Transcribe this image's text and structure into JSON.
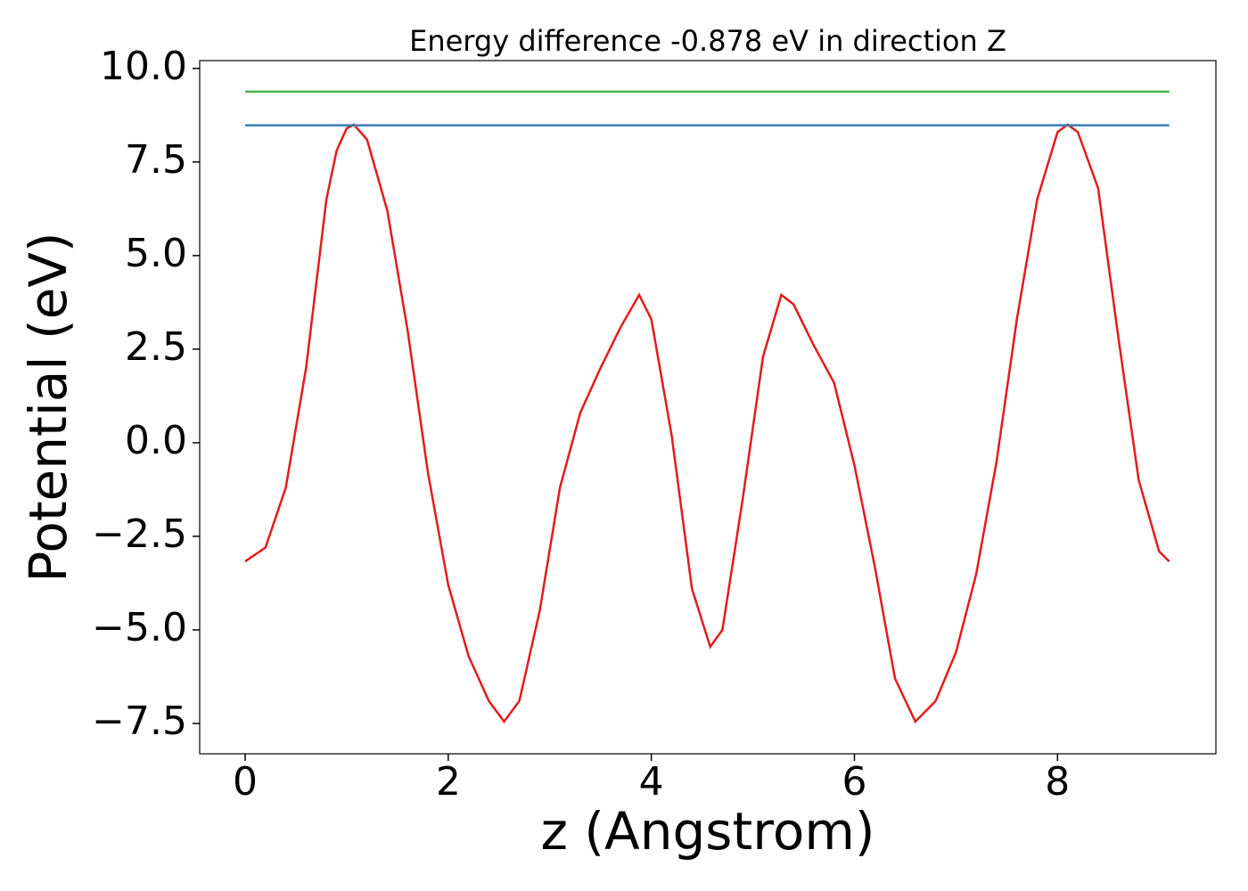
{
  "chart_data": {
    "type": "line",
    "title": "Energy difference -0.878 eV in direction Z",
    "xlabel": "z (Angstrom)",
    "ylabel": "Potential (eV)",
    "xlim": [
      -0.448,
      9.56
    ],
    "ylim": [
      -8.31,
      10.21
    ],
    "xticks": [
      0,
      2,
      4,
      6,
      8
    ],
    "yticks": [
      {
        "value": 10,
        "label": "10.0"
      },
      7.5,
      {
        "value": 5,
        "label": "5.0"
      },
      2.5,
      {
        "value": 0,
        "label": "0.0"
      },
      {
        "value": -2.5,
        "label": "−2.5"
      },
      {
        "value": -5,
        "label": "−5.0"
      },
      {
        "value": -7.5,
        "label": "−7.5"
      }
    ],
    "grid": false,
    "series": [
      {
        "color": "#e41a1c",
        "x": [
          0,
          0.2,
          0.4,
          0.6,
          0.8,
          0.9,
          1.0,
          1.07,
          1.2,
          1.4,
          1.6,
          1.8,
          2.0,
          2.2,
          2.4,
          2.55,
          2.7,
          2.9,
          3.1,
          3.3,
          3.5,
          3.7,
          3.88,
          4.0,
          4.2,
          4.4,
          4.58,
          4.7,
          4.9,
          5.1,
          5.28,
          5.4,
          5.6,
          5.8,
          6.0,
          6.2,
          6.4,
          6.6,
          6.8,
          7.0,
          7.2,
          7.4,
          7.6,
          7.8,
          8.0,
          8.1,
          8.2,
          8.4,
          8.6,
          8.8,
          9.0,
          9.1
        ],
        "values": [
          -3.17,
          -2.8,
          -1.2,
          2.0,
          6.5,
          7.8,
          8.4,
          8.5,
          8.1,
          6.2,
          3.0,
          -0.8,
          -3.8,
          -5.7,
          -6.9,
          -7.45,
          -6.9,
          -4.5,
          -1.2,
          0.8,
          2.0,
          3.1,
          3.95,
          3.3,
          0.2,
          -3.9,
          -5.45,
          -5.0,
          -1.5,
          2.3,
          3.95,
          3.7,
          2.6,
          1.6,
          -0.6,
          -3.3,
          -6.3,
          -7.45,
          -6.9,
          -5.6,
          -3.5,
          -0.5,
          3.3,
          6.5,
          8.3,
          8.5,
          8.3,
          6.8,
          2.8,
          -1.0,
          -2.9,
          -3.17
        ]
      },
      {
        "color": "#377eb8",
        "x": [
          0,
          9.1
        ],
        "values": [
          8.48,
          8.48
        ]
      },
      {
        "color": "#4daf4a",
        "x": [
          0,
          9.1
        ],
        "values": [
          9.38,
          9.38
        ]
      }
    ]
  }
}
